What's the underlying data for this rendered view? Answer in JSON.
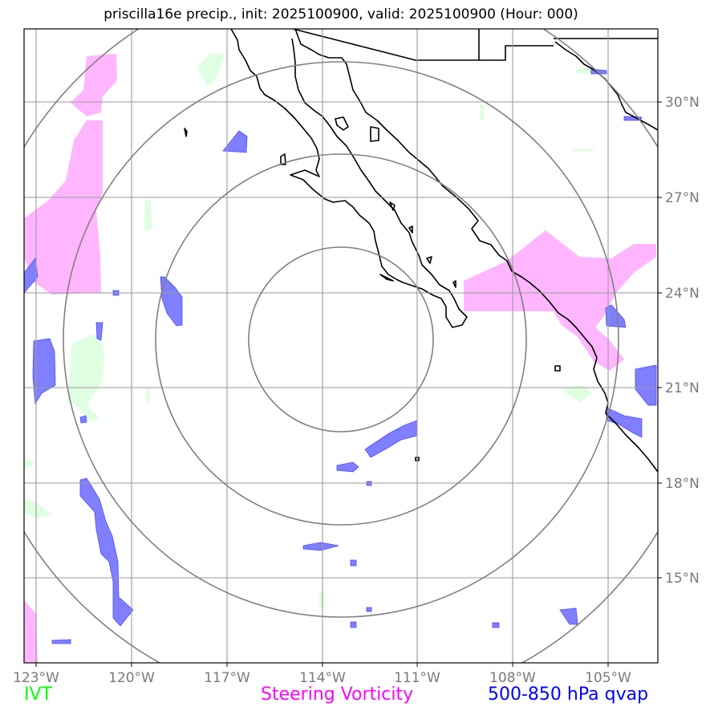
{
  "title": "priscilla16e precip., init: 2025100900, valid: 2025100900 (Hour: 000)",
  "lon_ticks": [
    "123°W",
    "120°W",
    "117°W",
    "114°W",
    "111°W",
    "108°W",
    "105°W"
  ],
  "lat_ticks": [
    "30°N",
    "27°N",
    "24°N",
    "21°N",
    "18°N",
    "15°N"
  ],
  "legend": {
    "ivt": {
      "label": "IVT",
      "color": "#00ff00"
    },
    "vort": {
      "label": "Steering Vorticity",
      "color": "#ff00ff"
    },
    "qvap": {
      "label": "500-850 hPa qvap",
      "color": "#0000ff"
    }
  },
  "map": {
    "projection": "PlateCarree",
    "lon_range": [
      -123.4,
      -103.5
    ],
    "lat_range": [
      12.5,
      32.4
    ],
    "range_rings": 4,
    "gridlines": true
  }
}
